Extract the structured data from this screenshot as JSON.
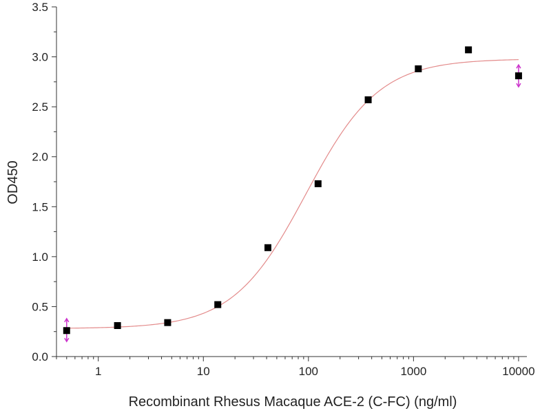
{
  "chart_data": {
    "type": "scatter",
    "title": "",
    "xlabel": "Recombinant Rhesus Macaque ACE-2 (C-FC) (ng/ml)",
    "ylabel": "OD450",
    "xscale": "log",
    "xlim": [
      0.4,
      12000
    ],
    "ylim": [
      0,
      3.5
    ],
    "x_ticks": [
      1,
      10,
      100,
      1000,
      10000
    ],
    "x_tick_labels": [
      "1",
      "10",
      "100",
      "1000",
      "10000"
    ],
    "y_ticks": [
      0.0,
      0.5,
      1.0,
      1.5,
      2.0,
      2.5,
      3.0,
      3.5
    ],
    "y_tick_labels": [
      "0.0",
      "0.5",
      "1.0",
      "1.5",
      "2.0",
      "2.5",
      "3.0",
      "3.5"
    ],
    "grid": false,
    "legend": "none",
    "series": [
      {
        "marker": "square",
        "color": "#000000",
        "x": [
          0.5,
          1.524,
          4.572,
          13.72,
          41.15,
          123.5,
          370.4,
          1111,
          3333,
          10000
        ],
        "y": [
          0.26,
          0.31,
          0.34,
          0.52,
          1.09,
          1.73,
          2.57,
          2.88,
          3.07,
          2.81
        ]
      }
    ],
    "fit_curve": {
      "model": "4PL",
      "color": "#e38a8a",
      "bottom": 0.28,
      "top": 2.98,
      "ec50": 95,
      "hill": 1.25
    },
    "error_bars": {
      "color": "#cc33cc",
      "points": [
        {
          "x": 0.5,
          "y": 0.26,
          "low": 0.15,
          "high": 0.38
        },
        {
          "x": 10000,
          "y": 2.81,
          "low": 2.7,
          "high": 2.92
        }
      ]
    }
  }
}
